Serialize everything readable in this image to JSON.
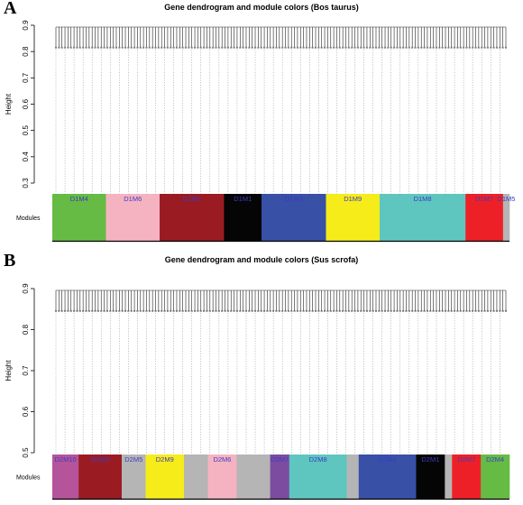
{
  "figure": {
    "panels": [
      {
        "letter": "A",
        "title": "Gene dendrogram and module colors (Bos taurus)",
        "y_axis_label": "Height",
        "y_ticks": [
          "0.3",
          "0.4",
          "0.5",
          "0.6",
          "0.7",
          "0.8",
          "0.9"
        ],
        "y_range": [
          0.3,
          0.9
        ],
        "modules_label": "Modules",
        "modules": [
          {
            "label": "D1M4",
            "color": "#66bb44",
            "label_color": "#3b3bc4",
            "width": 1.0
          },
          {
            "label": "D1M6",
            "color": "#f5b3c1",
            "label_color": "#3b3bc4",
            "width": 1.0
          },
          {
            "label": "D1M2",
            "color": "#9a1c22",
            "label_color": "#3b3bc4",
            "width": 1.2
          },
          {
            "label": "D1M1",
            "color": "#050505",
            "label_color": "#3b3bc4",
            "width": 0.7
          },
          {
            "label": "D1M3",
            "color": "#3850a6",
            "label_color": "#3b3bc4",
            "width": 1.2
          },
          {
            "label": "D1M9",
            "color": "#f6ec1a",
            "label_color": "#3b3bc4",
            "width": 1.0
          },
          {
            "label": "D1M8",
            "color": "#5ec6bf",
            "label_color": "#3b3bc4",
            "width": 1.6
          },
          {
            "label": "D1M7",
            "color": "#ee2027",
            "label_color": "#3b3bc4",
            "width": 0.7
          },
          {
            "label": "D1M5",
            "color": "#b5b5b5",
            "label_color": "#3b3bc4",
            "width": 0.12
          }
        ]
      },
      {
        "letter": "B",
        "title": "Gene dendrogram and module colors (Sus scrofa)",
        "y_axis_label": "Height",
        "y_ticks": [
          "0.5",
          "0.6",
          "0.7",
          "0.8",
          "0.9"
        ],
        "y_range": [
          0.5,
          0.9
        ],
        "modules_label": "Modules",
        "modules": [
          {
            "label": "D2M10",
            "color": "#b5549a",
            "label_color": "#3b3bc4",
            "width": 0.55
          },
          {
            "label": "D2M3",
            "color": "#9a1c22",
            "label_color": "#3b3bc4",
            "width": 0.9
          },
          {
            "label": "D2M5",
            "color": "#b5b5b5",
            "label_color": "#3b3bc4",
            "width": 0.5
          },
          {
            "label": "D2M9",
            "color": "#f6ec1a",
            "label_color": "#3b3bc4",
            "width": 0.8
          },
          {
            "label": "",
            "color": "#b5b5b5",
            "label_color": "#3b3bc4",
            "width": 0.5
          },
          {
            "label": "D2M6",
            "color": "#f5b3c1",
            "label_color": "#3b3bc4",
            "width": 0.6
          },
          {
            "label": "",
            "color": "#b5b5b5",
            "label_color": "#3b3bc4",
            "width": 0.7
          },
          {
            "label": "D2M7",
            "color": "#7b4ca0",
            "label_color": "#3b3bc4",
            "width": 0.4
          },
          {
            "label": "D2M8",
            "color": "#5ec6bf",
            "label_color": "#3b3bc4",
            "width": 1.2
          },
          {
            "label": "",
            "color": "#b5b5b5",
            "label_color": "#3b3bc4",
            "width": 0.25
          },
          {
            "label": "D2M2",
            "color": "#3850a6",
            "label_color": "#3b3bc4",
            "width": 1.2
          },
          {
            "label": "D2M1",
            "color": "#050505",
            "label_color": "#3b3bc4",
            "width": 0.6
          },
          {
            "label": "",
            "color": "#b5b5b5",
            "label_color": "#3b3bc4",
            "width": 0.15
          },
          {
            "label": "D2M7",
            "color": "#ee2027",
            "label_color": "#3b3bc4",
            "width": 0.6
          },
          {
            "label": "D2M4",
            "color": "#66bb44",
            "label_color": "#3b3bc4",
            "width": 0.6
          }
        ]
      }
    ],
    "colors": {
      "dendrogram_line": "#222222",
      "guide_line": "#8a8a8a",
      "axis": "#000000"
    }
  }
}
